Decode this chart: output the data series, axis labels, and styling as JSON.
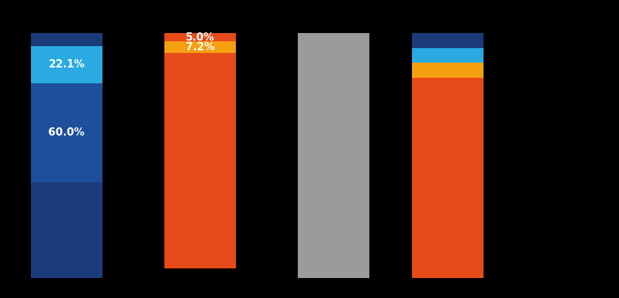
{
  "background_color": "#000000",
  "figsize": [
    9.0,
    4.33
  ],
  "dpi": 100,
  "bar_width": 0.75,
  "x_positions": [
    0.7,
    2.1,
    3.5,
    4.7
  ],
  "xlim": [
    0.0,
    6.5
  ],
  "ylim": [
    -160,
    20
  ],
  "bars": [
    {
      "segments_top_to_bottom": [
        {
          "value": 8.0,
          "color": "#1b3c7a"
        },
        {
          "value": 22.1,
          "color": "#29abe2"
        },
        {
          "value": 60.0,
          "color": "#1e4f9c"
        },
        {
          "value": 8.0,
          "color": "#1b3c7a"
        },
        {
          "value": 50.0,
          "color": "#1b3c7a"
        }
      ],
      "labels": [
        {
          "text": "",
          "rel": 0.5,
          "color": "white",
          "size": 11
        },
        {
          "text": "22.1%",
          "rel": 0.5,
          "color": "white",
          "size": 11
        },
        {
          "text": "60.0%",
          "rel": 0.5,
          "color": "white",
          "size": 11
        },
        {
          "text": "",
          "rel": 0.5,
          "color": "white",
          "size": 11
        },
        {
          "text": "",
          "rel": 0.5,
          "color": "white",
          "size": 11
        }
      ]
    },
    {
      "segments_top_to_bottom": [
        {
          "value": 5.0,
          "color": "#e84b1a"
        },
        {
          "value": 7.2,
          "color": "#f5a011"
        },
        {
          "value": 130.0,
          "color": "#e84b1a"
        }
      ],
      "labels": [
        {
          "text": "5.0%",
          "rel": 0.5,
          "color": "white",
          "size": 11
        },
        {
          "text": "7.2%",
          "rel": 0.5,
          "color": "white",
          "size": 11
        },
        {
          "text": "",
          "rel": 0.5,
          "color": "white",
          "size": 11
        }
      ]
    },
    {
      "segments_top_to_bottom": [
        {
          "value": 148.0,
          "color": "#9b9b9b"
        }
      ],
      "labels": [
        {
          "text": "",
          "rel": 0.5,
          "color": "white",
          "size": 11
        }
      ]
    },
    {
      "segments_top_to_bottom": [
        {
          "value": 9.0,
          "color": "#1b3c7a"
        },
        {
          "value": 9.0,
          "color": "#29abe2"
        },
        {
          "value": 9.0,
          "color": "#f5a011"
        },
        {
          "value": 121.0,
          "color": "#e84b1a"
        }
      ],
      "labels": [
        {
          "text": "",
          "rel": 0.5,
          "color": "white",
          "size": 10
        },
        {
          "text": "",
          "rel": 0.5,
          "color": "white",
          "size": 10
        },
        {
          "text": "",
          "rel": 0.5,
          "color": "white",
          "size": 10
        },
        {
          "text": "",
          "rel": 0.5,
          "color": "white",
          "size": 10
        }
      ]
    }
  ]
}
